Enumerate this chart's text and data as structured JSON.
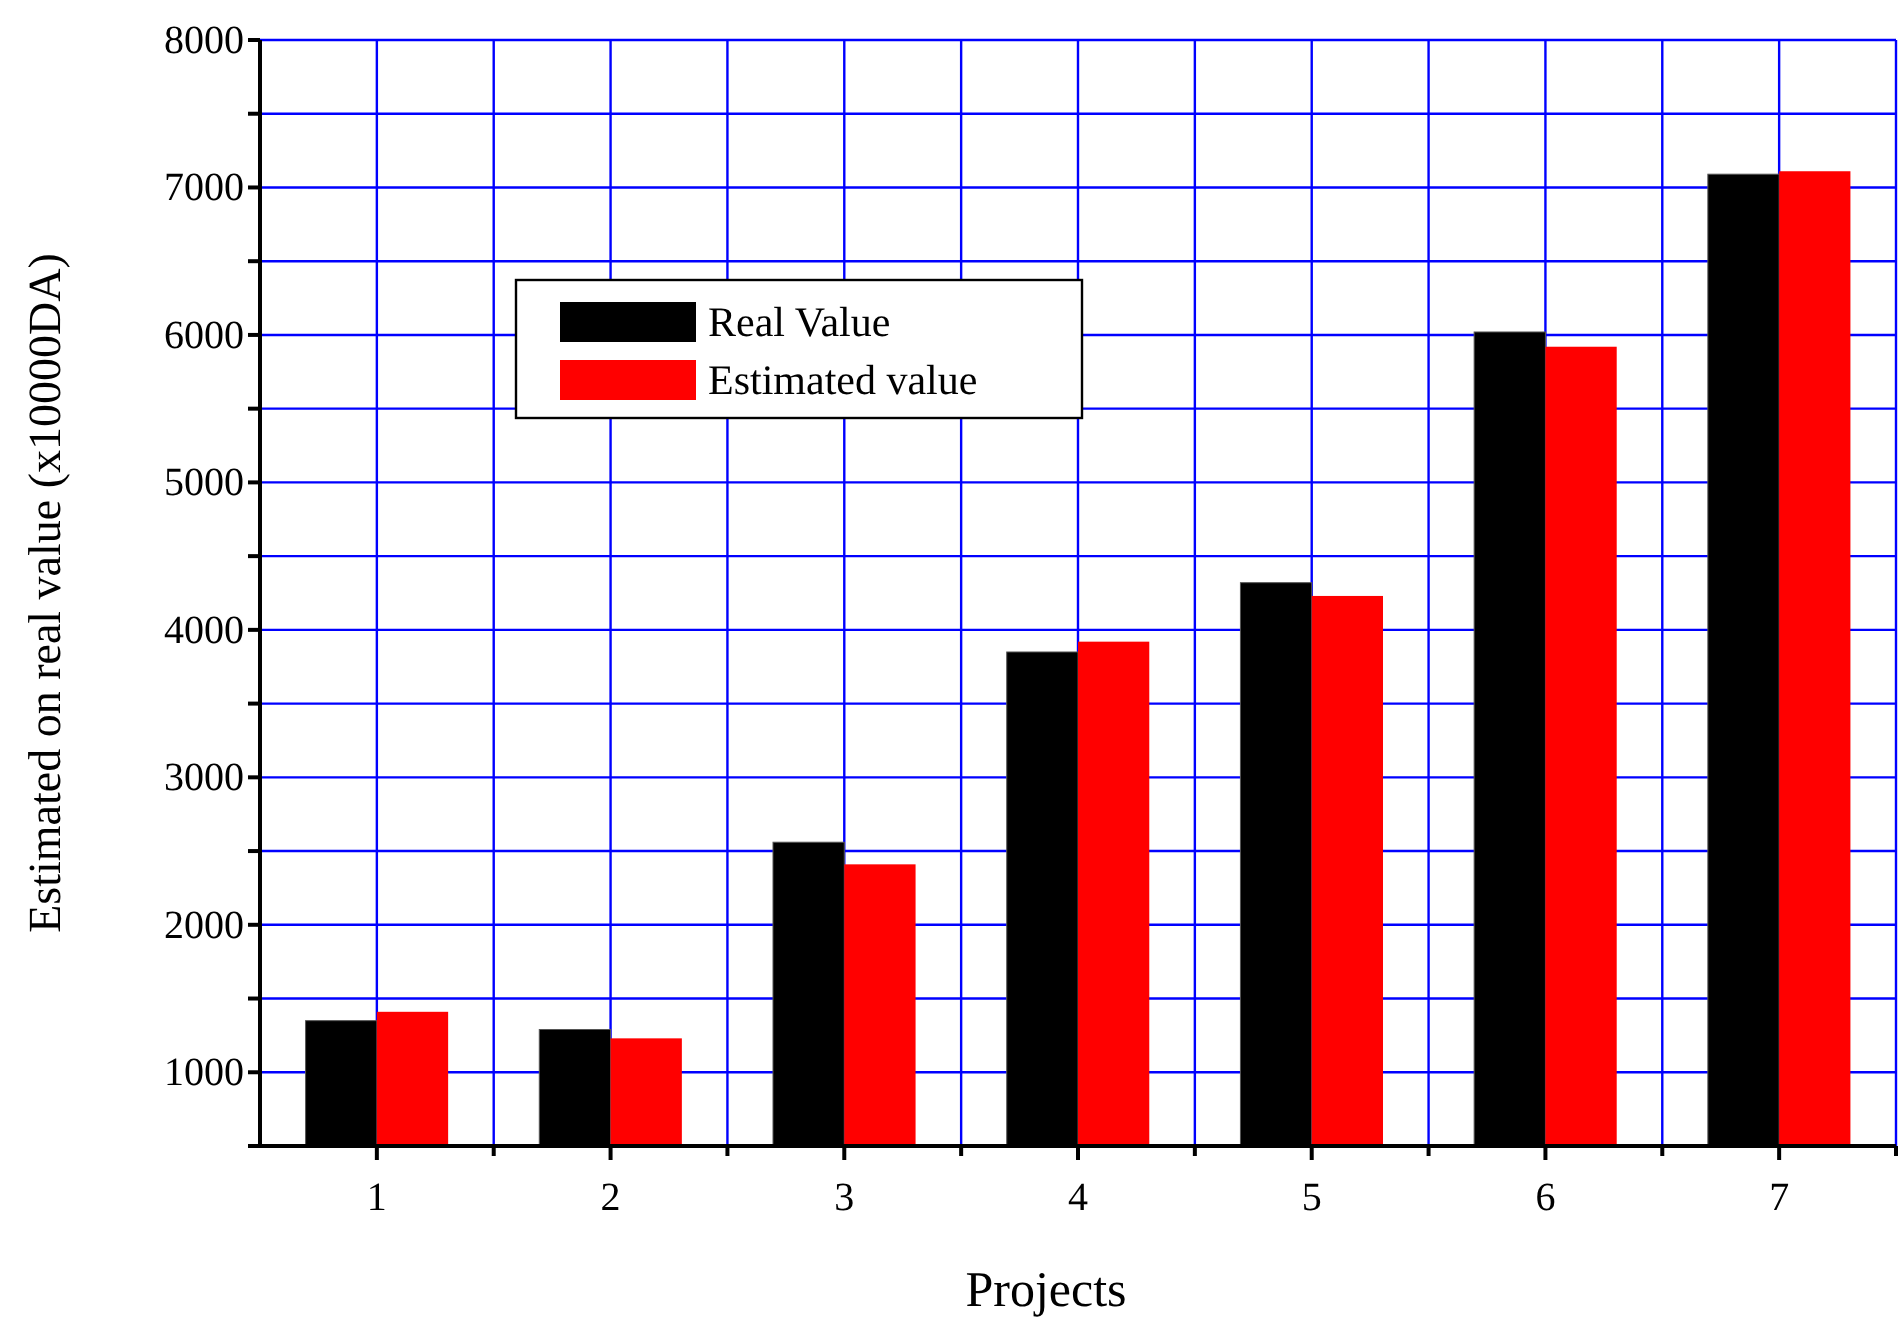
{
  "chart_data": {
    "type": "bar",
    "xlabel": "Projects",
    "ylabel": "Estimated on real value (x10000DA)",
    "categories": [
      "1",
      "2",
      "3",
      "4",
      "5",
      "6",
      "7"
    ],
    "series": [
      {
        "name": "Real Value",
        "color": "#000000",
        "values": [
          1350,
          1290,
          2560,
          3850,
          4320,
          6020,
          7090
        ]
      },
      {
        "name": "Estimated value",
        "color": "#ff0000",
        "values": [
          1410,
          1230,
          2410,
          3920,
          4230,
          5920,
          7110
        ]
      }
    ],
    "ylim": [
      500,
      8000
    ],
    "yticks": [
      {
        "value": 500,
        "label": null
      },
      1000,
      {
        "value": 1500,
        "label": null
      },
      2000,
      {
        "value": 2500,
        "label": null
      },
      3000,
      {
        "value": 3500,
        "label": null
      },
      4000,
      {
        "value": 4500,
        "label": null
      },
      5000,
      {
        "value": 5500,
        "label": null
      },
      6000,
      {
        "value": 6500,
        "label": null
      },
      7000,
      {
        "value": 7500,
        "label": null
      },
      8000
    ],
    "grid": true,
    "legend": "top left"
  }
}
